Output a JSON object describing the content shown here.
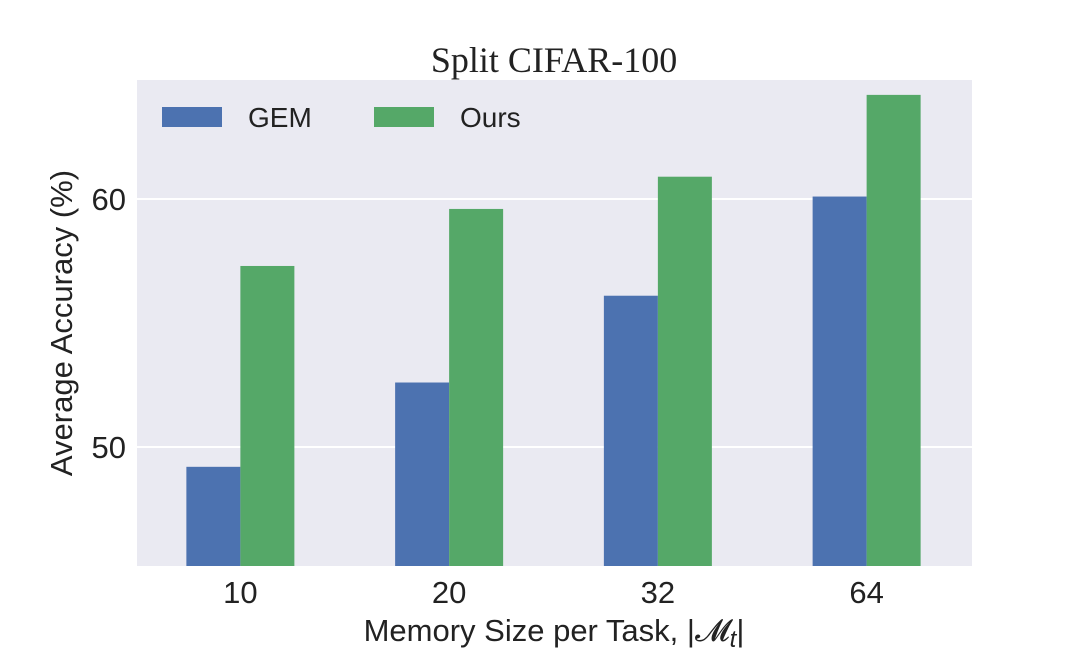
{
  "chart_data": {
    "type": "bar",
    "title": "Split CIFAR-100",
    "xlabel": "Memory Size per Task, |𝓜",
    "xlabel_sub": "t",
    "xlabel_end": "|",
    "ylabel": "Average Accuracy (%)",
    "categories": [
      "10",
      "20",
      "32",
      "64"
    ],
    "series": [
      {
        "name": "GEM",
        "color": "#4c72b0",
        "values": [
          49.2,
          52.6,
          56.1,
          60.1
        ]
      },
      {
        "name": "Ours",
        "color": "#55a868",
        "values": [
          57.3,
          59.6,
          60.9,
          64.2
        ]
      }
    ],
    "yticks": [
      "50",
      "60"
    ],
    "ylim": [
      45.2,
      64.8
    ],
    "grid": true,
    "legend": "top-left",
    "background": "#eaeaf2"
  }
}
